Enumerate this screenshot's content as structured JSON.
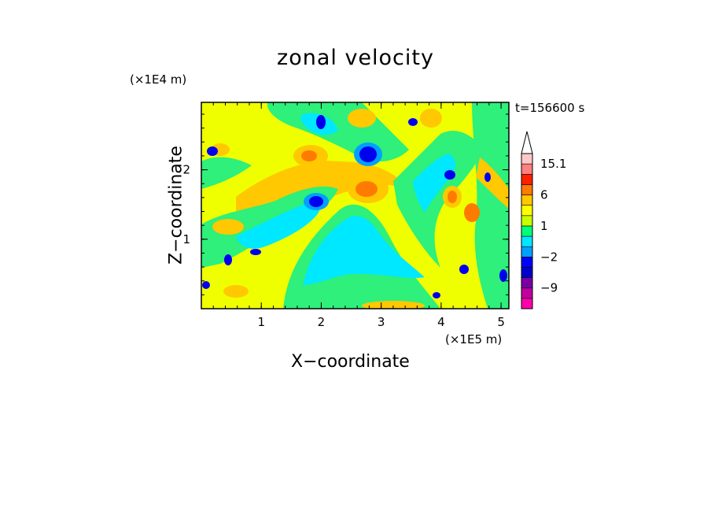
{
  "chart_data": {
    "type": "heatmap",
    "title": "zonal velocity",
    "xlabel": "X−coordinate",
    "ylabel": "Z−coordinate",
    "x_unit": "(×1E5 m)",
    "y_unit": "(×1E4 m)",
    "time_label": "t=156600 s",
    "xlim": [
      0,
      5.13
    ],
    "ylim": [
      0,
      2.97
    ],
    "x_ticks": [
      "1",
      "2",
      "3",
      "4",
      "5"
    ],
    "y_ticks": [
      "1",
      "2"
    ],
    "colorbar": {
      "levels": [
        -15,
        -12,
        -9,
        -6,
        -3,
        -2,
        -1,
        0,
        1,
        2,
        3,
        6,
        9,
        12,
        15.1
      ],
      "labels": [
        "15.1",
        "6",
        "1",
        "−2",
        "−9"
      ],
      "colors": [
        "#ff00aa",
        "#c000a0",
        "#7a00a6",
        "#0000cc",
        "#0000ff",
        "#00a0ff",
        "#00e6ff",
        "#00ff78",
        "#c8ff00",
        "#ffff00",
        "#ffc800",
        "#ff7a00",
        "#ff2000",
        "#ff8080",
        "#ffc8c8",
        "#ffffff"
      ],
      "extend_max": true
    }
  }
}
